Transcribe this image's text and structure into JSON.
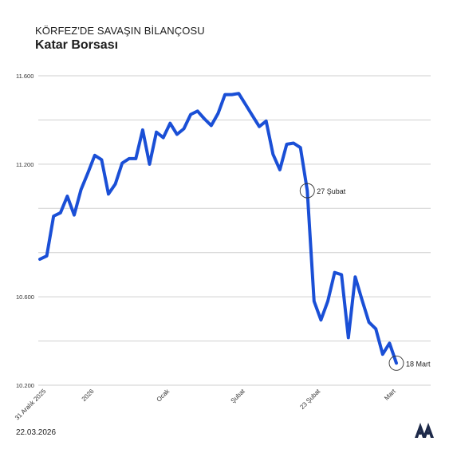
{
  "header": {
    "kicker": "KÖRFEZ'DE SAVAŞIN BİLANÇOSU",
    "title": "Katar Borsası"
  },
  "footer": {
    "date": "22.03.2026",
    "logo_icon": "aa-logo-icon"
  },
  "colors": {
    "line": "#1a4fd6",
    "grid": "#cfcfcf",
    "text": "#1e1e1e"
  },
  "chart_data": {
    "type": "line",
    "ylim": [
      10200,
      11600
    ],
    "yticks": [
      {
        "value": 11600,
        "label": "11.600"
      },
      {
        "value": 11200,
        "label": "11.200"
      },
      {
        "value": 10600,
        "label": "10.600"
      },
      {
        "value": 10200,
        "label": "10.200"
      }
    ],
    "ygrid": [
      11600,
      11400,
      11200,
      11000,
      10800,
      10600,
      10400,
      10200
    ],
    "xticks": [
      {
        "index": 0,
        "label": "31 Aralık 2025"
      },
      {
        "index": 7,
        "label": "2026"
      },
      {
        "index": 18,
        "label": "Ocak"
      },
      {
        "index": 29,
        "label": "Şubat"
      },
      {
        "index": 40,
        "label": "23 Şubat"
      },
      {
        "index": 51,
        "label": "Mart"
      }
    ],
    "values": [
      10770,
      10785,
      10965,
      10980,
      11055,
      10970,
      11085,
      11160,
      11240,
      11220,
      11065,
      11110,
      11205,
      11225,
      11225,
      11355,
      11200,
      11345,
      11320,
      11385,
      11335,
      11360,
      11425,
      11440,
      11405,
      11375,
      11430,
      11515,
      11515,
      11520,
      11470,
      11420,
      11370,
      11395,
      11245,
      11175,
      11290,
      11295,
      11275,
      11080,
      10580,
      10495,
      10580,
      10710,
      10700,
      10415,
      10690,
      10585,
      10485,
      10455,
      10340,
      10390,
      10300
    ],
    "annotations": [
      {
        "index": 39,
        "label": "27 Şubat"
      },
      {
        "index": 52,
        "label": "18 Mart"
      }
    ]
  }
}
